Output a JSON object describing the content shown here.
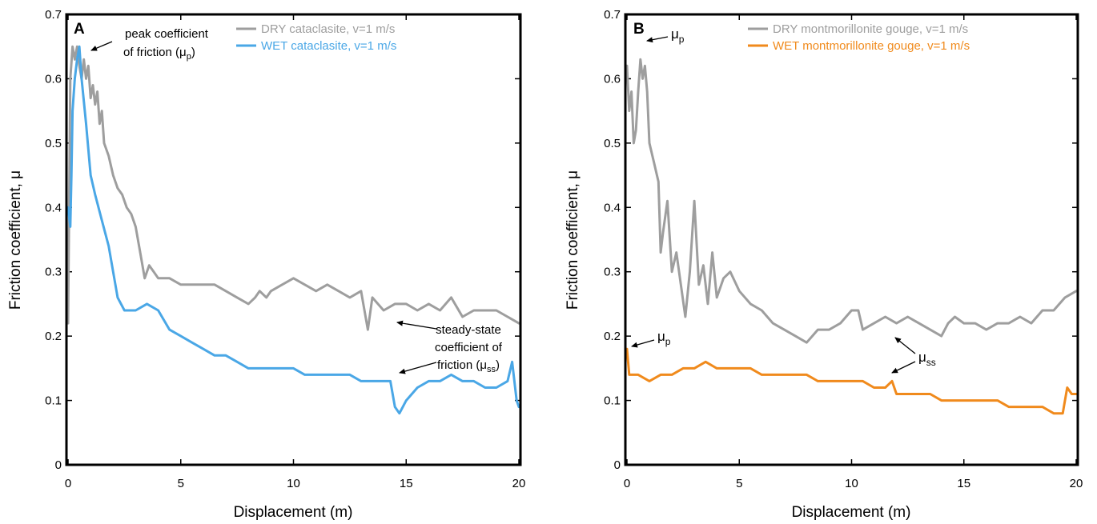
{
  "colors": {
    "dry": "#9e9e9e",
    "wet_cataclasite": "#4aa7e6",
    "wet_montmorillonite": "#f08a1c",
    "axis": "#000000"
  },
  "chart_data": [
    {
      "type": "line",
      "panel": "A",
      "xlabel": "Displacement (m)",
      "ylabel": "Friction coefficient, μ",
      "xlim": [
        0,
        20
      ],
      "ylim": [
        0,
        0.7
      ],
      "xticks": [
        "0",
        "5",
        "10",
        "15",
        "20"
      ],
      "yticks": [
        "0",
        "0.1",
        "0.2",
        "0.3",
        "0.4",
        "0.5",
        "0.6",
        "0.7"
      ],
      "grid": false,
      "legend_position": "top-right",
      "series": [
        {
          "name": "DRY cataclasite, v=1 m/s",
          "color": "#9e9e9e",
          "x": [
            0,
            0.1,
            0.2,
            0.3,
            0.4,
            0.5,
            0.6,
            0.7,
            0.8,
            0.9,
            1.0,
            1.1,
            1.2,
            1.3,
            1.4,
            1.5,
            1.6,
            1.8,
            2.0,
            2.2,
            2.4,
            2.6,
            2.8,
            3.0,
            3.2,
            3.4,
            3.6,
            3.8,
            4.0,
            4.5,
            5.0,
            5.5,
            6.0,
            6.5,
            7.0,
            7.5,
            8.0,
            8.3,
            8.5,
            8.8,
            9.0,
            9.5,
            10.0,
            10.5,
            11.0,
            11.5,
            12.0,
            12.5,
            13.0,
            13.3,
            13.5,
            14.0,
            14.5,
            15.0,
            15.5,
            16.0,
            16.5,
            17.0,
            17.5,
            18.0,
            18.5,
            19.0,
            19.5,
            20.0
          ],
          "y": [
            0.22,
            0.6,
            0.65,
            0.63,
            0.65,
            0.62,
            0.6,
            0.63,
            0.6,
            0.62,
            0.57,
            0.59,
            0.56,
            0.58,
            0.53,
            0.55,
            0.5,
            0.48,
            0.45,
            0.43,
            0.42,
            0.4,
            0.39,
            0.37,
            0.33,
            0.29,
            0.31,
            0.3,
            0.29,
            0.29,
            0.28,
            0.28,
            0.28,
            0.28,
            0.27,
            0.26,
            0.25,
            0.26,
            0.27,
            0.26,
            0.27,
            0.28,
            0.29,
            0.28,
            0.27,
            0.28,
            0.27,
            0.26,
            0.27,
            0.21,
            0.26,
            0.24,
            0.25,
            0.25,
            0.24,
            0.25,
            0.24,
            0.26,
            0.23,
            0.24,
            0.24,
            0.24,
            0.23,
            0.22
          ]
        },
        {
          "name": "WET cataclasite, v=1 m/s",
          "color": "#4aa7e6",
          "x": [
            0,
            0.1,
            0.15,
            0.2,
            0.3,
            0.4,
            0.5,
            0.6,
            0.8,
            1.0,
            1.2,
            1.5,
            1.8,
            2.0,
            2.2,
            2.5,
            3.0,
            3.5,
            4.0,
            4.5,
            5.0,
            5.5,
            6.0,
            6.5,
            7.0,
            7.5,
            8.0,
            8.5,
            9.0,
            9.5,
            10.0,
            10.5,
            11.0,
            11.5,
            12.0,
            12.5,
            13.0,
            13.5,
            14.0,
            14.3,
            14.5,
            14.7,
            15.0,
            15.5,
            16.0,
            16.5,
            17.0,
            17.5,
            18.0,
            18.5,
            19.0,
            19.5,
            19.7,
            19.9,
            20.0
          ],
          "y": [
            0.4,
            0.37,
            0.45,
            0.55,
            0.6,
            0.63,
            0.65,
            0.6,
            0.53,
            0.45,
            0.42,
            0.38,
            0.34,
            0.3,
            0.26,
            0.24,
            0.24,
            0.25,
            0.24,
            0.21,
            0.2,
            0.19,
            0.18,
            0.17,
            0.17,
            0.16,
            0.15,
            0.15,
            0.15,
            0.15,
            0.15,
            0.14,
            0.14,
            0.14,
            0.14,
            0.14,
            0.13,
            0.13,
            0.13,
            0.13,
            0.09,
            0.08,
            0.1,
            0.12,
            0.13,
            0.13,
            0.14,
            0.13,
            0.13,
            0.12,
            0.12,
            0.13,
            0.16,
            0.1,
            0.09
          ]
        }
      ],
      "annotations": {
        "peak_line1": "peak coefficient",
        "peak_line2": "of friction (",
        "peak_mu": "μ",
        "peak_sub": "p",
        "peak_close": ")",
        "ss_line1": "steady-state",
        "ss_line2": "coefficient of",
        "ss_line3": "friction (",
        "ss_mu": "μ",
        "ss_sub": "ss",
        "ss_close": ")"
      }
    },
    {
      "type": "line",
      "panel": "B",
      "xlabel": "Displacement (m)",
      "ylabel": "Friction coefficient, μ",
      "xlim": [
        0,
        20
      ],
      "ylim": [
        0,
        0.7
      ],
      "xticks": [
        "0",
        "5",
        "10",
        "15",
        "20"
      ],
      "yticks": [
        "0",
        "0.1",
        "0.2",
        "0.3",
        "0.4",
        "0.5",
        "0.6",
        "0.7"
      ],
      "grid": false,
      "legend_position": "top-right",
      "series": [
        {
          "name": "DRY montmorillonite gouge, v=1 m/s",
          "color": "#9e9e9e",
          "x": [
            0,
            0.1,
            0.2,
            0.3,
            0.4,
            0.5,
            0.6,
            0.7,
            0.8,
            0.9,
            1.0,
            1.2,
            1.4,
            1.5,
            1.6,
            1.8,
            2.0,
            2.2,
            2.4,
            2.6,
            2.8,
            3.0,
            3.2,
            3.4,
            3.6,
            3.8,
            4.0,
            4.3,
            4.6,
            5.0,
            5.5,
            6.0,
            6.5,
            7.0,
            7.5,
            8.0,
            8.5,
            9.0,
            9.5,
            10.0,
            10.3,
            10.5,
            11.0,
            11.5,
            12.0,
            12.5,
            13.0,
            13.5,
            14.0,
            14.3,
            14.6,
            15.0,
            15.5,
            16.0,
            16.5,
            17.0,
            17.5,
            18.0,
            18.5,
            19.0,
            19.5,
            20.0
          ],
          "y": [
            0.62,
            0.55,
            0.58,
            0.5,
            0.52,
            0.58,
            0.63,
            0.6,
            0.62,
            0.58,
            0.5,
            0.47,
            0.44,
            0.33,
            0.36,
            0.41,
            0.3,
            0.33,
            0.28,
            0.23,
            0.3,
            0.41,
            0.28,
            0.31,
            0.25,
            0.33,
            0.26,
            0.29,
            0.3,
            0.27,
            0.25,
            0.24,
            0.22,
            0.21,
            0.2,
            0.19,
            0.21,
            0.21,
            0.22,
            0.24,
            0.24,
            0.21,
            0.22,
            0.23,
            0.22,
            0.23,
            0.22,
            0.21,
            0.2,
            0.22,
            0.23,
            0.22,
            0.22,
            0.21,
            0.22,
            0.22,
            0.23,
            0.22,
            0.24,
            0.24,
            0.26,
            0.27
          ]
        },
        {
          "name": "WET montmorillonite gouge, v=1 m/s",
          "color": "#f08a1c",
          "x": [
            0,
            0.1,
            0.2,
            0.5,
            1.0,
            1.5,
            2.0,
            2.5,
            3.0,
            3.5,
            4.0,
            4.5,
            5.0,
            5.5,
            6.0,
            6.5,
            7.0,
            7.5,
            8.0,
            8.5,
            9.0,
            9.5,
            10.0,
            10.5,
            11.0,
            11.5,
            11.8,
            12.0,
            12.5,
            13.0,
            13.5,
            14.0,
            14.5,
            15.0,
            15.5,
            16.0,
            16.5,
            17.0,
            17.5,
            18.0,
            18.5,
            19.0,
            19.4,
            19.6,
            19.8,
            20.0
          ],
          "y": [
            0.18,
            0.14,
            0.14,
            0.14,
            0.13,
            0.14,
            0.14,
            0.15,
            0.15,
            0.16,
            0.15,
            0.15,
            0.15,
            0.15,
            0.14,
            0.14,
            0.14,
            0.14,
            0.14,
            0.13,
            0.13,
            0.13,
            0.13,
            0.13,
            0.12,
            0.12,
            0.13,
            0.11,
            0.11,
            0.11,
            0.11,
            0.1,
            0.1,
            0.1,
            0.1,
            0.1,
            0.1,
            0.09,
            0.09,
            0.09,
            0.09,
            0.08,
            0.08,
            0.12,
            0.11,
            0.11
          ]
        }
      ],
      "annotations": {
        "mu_p_top": "μ",
        "mu_p_top_sub": "p",
        "mu_p_bottom": "μ",
        "mu_p_bottom_sub": "p",
        "mu_ss": "μ",
        "mu_ss_sub": "ss"
      }
    }
  ]
}
